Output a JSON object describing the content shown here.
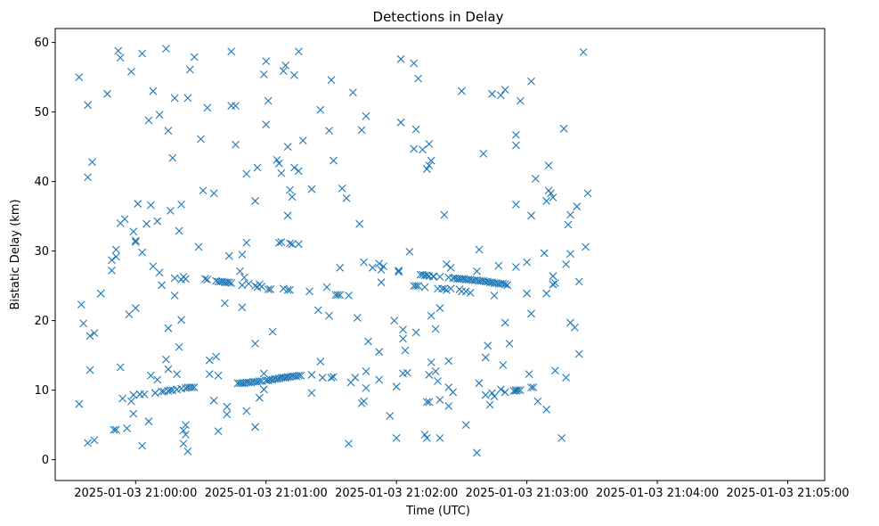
{
  "chart_data": {
    "type": "scatter",
    "title": "Detections in Delay",
    "xlabel": "Time (UTC)",
    "ylabel": "Bistatic Delay (km)",
    "x_unit": "seconds after 2025-01-03 21:00:00",
    "xlim": [
      -37,
      317
    ],
    "ylim": [
      -3,
      62
    ],
    "grid": false,
    "marker": "x",
    "color": "#1f77b4",
    "xticks": [
      {
        "value": 0,
        "label": "2025-01-03 21:00:00"
      },
      {
        "value": 60,
        "label": "2025-01-03 21:01:00"
      },
      {
        "value": 120,
        "label": "2025-01-03 21:02:00"
      },
      {
        "value": 180,
        "label": "2025-01-03 21:03:00"
      },
      {
        "value": 240,
        "label": "2025-01-03 21:04:00"
      },
      {
        "value": 300,
        "label": "2025-01-03 21:05:00"
      }
    ],
    "yticks": [
      {
        "value": 0,
        "label": "0"
      },
      {
        "value": 10,
        "label": "10"
      },
      {
        "value": 20,
        "label": "20"
      },
      {
        "value": 30,
        "label": "30"
      },
      {
        "value": 40,
        "label": "40"
      },
      {
        "value": 50,
        "label": "50"
      },
      {
        "value": 60,
        "label": "60"
      }
    ],
    "points": [
      [
        -26,
        55
      ],
      [
        -26,
        8
      ],
      [
        -25,
        22.3
      ],
      [
        -24,
        19.6
      ],
      [
        -22,
        51
      ],
      [
        -22,
        2.4
      ],
      [
        -22,
        40.6
      ],
      [
        -21,
        17.8
      ],
      [
        -21,
        12.9
      ],
      [
        -20,
        42.8
      ],
      [
        -19,
        2.8
      ],
      [
        -19,
        18.2
      ],
      [
        -16,
        23.9
      ],
      [
        -13,
        52.6
      ],
      [
        -11,
        27.2
      ],
      [
        -11,
        28.7
      ],
      [
        -10,
        4.3
      ],
      [
        -9,
        29.2
      ],
      [
        -9,
        4.3
      ],
      [
        -9,
        30.2
      ],
      [
        -8,
        58.8
      ],
      [
        -7,
        57.8
      ],
      [
        -7,
        34
      ],
      [
        -7,
        13.3
      ],
      [
        -6,
        8.8
      ],
      [
        -5,
        34.6
      ],
      [
        -4,
        4.5
      ],
      [
        -3,
        20.9
      ],
      [
        -2,
        55.8
      ],
      [
        -2,
        8.4
      ],
      [
        -1,
        6.6
      ],
      [
        -1,
        9.3
      ],
      [
        -1,
        32.8
      ],
      [
        0,
        31.3
      ],
      [
        0,
        31.5
      ],
      [
        0,
        21.8
      ],
      [
        1,
        36.8
      ],
      [
        2,
        9.4
      ],
      [
        2,
        9.4
      ],
      [
        3,
        29.8
      ],
      [
        3,
        58.4
      ],
      [
        3,
        2
      ],
      [
        4,
        9.4
      ],
      [
        5,
        33.9
      ],
      [
        6,
        5.5
      ],
      [
        6,
        48.8
      ],
      [
        7,
        12.1
      ],
      [
        7,
        36.6
      ],
      [
        8,
        27.8
      ],
      [
        8,
        53
      ],
      [
        9,
        9.6
      ],
      [
        9,
        9.6
      ],
      [
        10,
        11.5
      ],
      [
        10,
        34.3
      ],
      [
        11,
        26.9
      ],
      [
        11,
        49.6
      ],
      [
        12,
        9.8
      ],
      [
        12,
        25.1
      ],
      [
        13,
        9.8
      ],
      [
        14,
        59.1
      ],
      [
        14,
        14.4
      ],
      [
        15,
        47.3
      ],
      [
        15,
        18.9
      ],
      [
        15,
        13
      ],
      [
        15,
        9.9
      ],
      [
        16,
        10
      ],
      [
        16,
        35.8
      ],
      [
        17,
        43.4
      ],
      [
        17,
        10
      ],
      [
        18,
        26.1
      ],
      [
        18,
        52
      ],
      [
        18,
        23.6
      ],
      [
        19,
        12.3
      ],
      [
        19,
        10.1
      ],
      [
        20,
        32.9
      ],
      [
        20,
        16.2
      ],
      [
        21,
        36.7
      ],
      [
        21,
        25.9
      ],
      [
        21,
        10.2
      ],
      [
        21,
        20.1
      ],
      [
        22,
        26.3
      ],
      [
        22,
        2.3
      ],
      [
        22,
        4.2
      ],
      [
        23,
        10.3
      ],
      [
        23,
        26
      ],
      [
        23,
        3.6
      ],
      [
        23,
        5
      ],
      [
        24,
        52
      ],
      [
        24,
        1.2
      ],
      [
        24,
        10.4
      ],
      [
        25,
        56.1
      ],
      [
        25,
        10.4
      ],
      [
        26,
        10.4
      ],
      [
        27,
        10.4
      ],
      [
        27,
        57.9
      ],
      [
        29,
        30.6
      ],
      [
        30,
        46.1
      ],
      [
        31,
        38.7
      ],
      [
        32,
        26
      ],
      [
        33,
        25.9
      ],
      [
        33,
        50.6
      ],
      [
        34,
        14.3
      ],
      [
        34,
        12.3
      ],
      [
        36,
        8.5
      ],
      [
        36,
        38.3
      ],
      [
        37,
        25.7
      ],
      [
        37,
        14.8
      ],
      [
        38,
        25.6
      ],
      [
        38,
        4.1
      ],
      [
        38,
        12.1
      ],
      [
        39,
        25.6
      ],
      [
        40,
        25.6
      ],
      [
        41,
        25.5
      ],
      [
        41,
        22.5
      ],
      [
        42,
        7.6
      ],
      [
        42,
        25.5
      ],
      [
        42,
        6.5
      ],
      [
        43,
        25.5
      ],
      [
        43,
        29.3
      ],
      [
        44,
        58.7
      ],
      [
        44,
        25.4
      ],
      [
        44,
        50.9
      ],
      [
        46,
        50.9
      ],
      [
        46,
        45.3
      ],
      [
        47,
        11
      ],
      [
        48,
        11
      ],
      [
        48,
        27.1
      ],
      [
        49,
        11
      ],
      [
        49,
        21.9
      ],
      [
        49,
        29.5
      ],
      [
        49,
        25.1
      ],
      [
        50,
        11
      ],
      [
        50,
        26.2
      ],
      [
        51,
        11.1
      ],
      [
        51,
        31.2
      ],
      [
        51,
        7
      ],
      [
        51,
        41.1
      ],
      [
        52,
        25.3
      ],
      [
        52,
        11.1
      ],
      [
        53,
        11.1
      ],
      [
        54,
        11.2
      ],
      [
        55,
        37.2
      ],
      [
        55,
        16.7
      ],
      [
        55,
        11.2
      ],
      [
        55,
        4.7
      ],
      [
        55,
        25
      ],
      [
        56,
        11.2
      ],
      [
        56,
        24.8
      ],
      [
        56,
        42
      ],
      [
        57,
        11.3
      ],
      [
        57,
        25.2
      ],
      [
        57,
        8.9
      ],
      [
        58,
        24.9
      ],
      [
        58,
        11.3
      ],
      [
        59,
        55.4
      ],
      [
        59,
        10.1
      ],
      [
        59,
        12.4
      ],
      [
        60,
        57.3
      ],
      [
        60,
        11.4
      ],
      [
        60,
        48.2
      ],
      [
        61,
        24.5
      ],
      [
        61,
        11.4
      ],
      [
        61,
        51.6
      ],
      [
        62,
        24.5
      ],
      [
        62,
        11.5
      ],
      [
        62,
        24.5
      ],
      [
        63,
        18.4
      ],
      [
        63,
        11.5
      ],
      [
        64,
        11.6
      ],
      [
        65,
        11.6
      ],
      [
        65,
        43.1
      ],
      [
        66,
        11.7
      ],
      [
        66,
        31.2
      ],
      [
        66,
        42.6
      ],
      [
        66,
        11.7
      ],
      [
        67,
        31.3
      ],
      [
        67,
        41.2
      ],
      [
        67,
        11.8
      ],
      [
        68,
        24.6
      ],
      [
        68,
        55.9
      ],
      [
        68,
        11.8
      ],
      [
        69,
        11.8
      ],
      [
        69,
        56.7
      ],
      [
        69,
        11.8
      ],
      [
        70,
        45
      ],
      [
        70,
        11.9
      ],
      [
        70,
        24.4
      ],
      [
        70,
        35.1
      ],
      [
        71,
        38.8
      ],
      [
        71,
        11.9
      ],
      [
        71,
        24.4
      ],
      [
        71,
        31.1
      ],
      [
        72,
        37.8
      ],
      [
        72,
        31
      ],
      [
        72,
        12
      ],
      [
        73,
        12
      ],
      [
        73,
        55.3
      ],
      [
        73,
        42
      ],
      [
        74,
        12
      ],
      [
        75,
        58.7
      ],
      [
        75,
        31
      ],
      [
        75,
        41.5
      ],
      [
        75,
        12.1
      ],
      [
        76,
        12.1
      ],
      [
        77,
        45.9
      ],
      [
        80,
        24.2
      ],
      [
        81,
        38.9
      ],
      [
        81,
        12.2
      ],
      [
        81,
        9.6
      ],
      [
        84,
        21.5
      ],
      [
        85,
        50.3
      ],
      [
        85,
        14.1
      ],
      [
        86,
        11.8
      ],
      [
        88,
        24.8
      ],
      [
        89,
        47.3
      ],
      [
        89,
        20.7
      ],
      [
        90,
        54.6
      ],
      [
        90,
        11.8
      ],
      [
        91,
        11.9
      ],
      [
        91,
        43
      ],
      [
        92,
        23.7
      ],
      [
        93,
        23.7
      ],
      [
        94,
        27.6
      ],
      [
        94,
        23.7
      ],
      [
        95,
        39
      ],
      [
        97,
        37.6
      ],
      [
        98,
        23.6
      ],
      [
        98,
        2.3
      ],
      [
        99,
        11.1
      ],
      [
        100,
        52.8
      ],
      [
        101,
        11.8
      ],
      [
        102,
        20.4
      ],
      [
        103,
        33.9
      ],
      [
        104,
        8.1
      ],
      [
        104,
        47.4
      ],
      [
        105,
        8.4
      ],
      [
        105,
        28.4
      ],
      [
        106,
        49.4
      ],
      [
        106,
        10.3
      ],
      [
        106,
        12.7
      ],
      [
        107,
        17
      ],
      [
        109,
        27.6
      ],
      [
        112,
        28.2
      ],
      [
        112,
        11.5
      ],
      [
        112,
        15.5
      ],
      [
        113,
        25.5
      ],
      [
        113,
        27.3
      ],
      [
        114,
        27.8
      ],
      [
        117,
        6.3
      ],
      [
        119,
        20
      ],
      [
        120,
        3.1
      ],
      [
        120,
        10.5
      ],
      [
        121,
        27.2
      ],
      [
        121,
        27
      ],
      [
        122,
        57.6
      ],
      [
        122,
        48.5
      ],
      [
        123,
        12.4
      ],
      [
        123,
        18.7
      ],
      [
        123,
        17.4
      ],
      [
        124,
        15.7
      ],
      [
        125,
        12.5
      ],
      [
        126,
        29.9
      ],
      [
        128,
        25
      ],
      [
        128,
        57
      ],
      [
        128,
        44.7
      ],
      [
        129,
        47.5
      ],
      [
        129,
        18.3
      ],
      [
        129,
        25
      ],
      [
        130,
        54.8
      ],
      [
        130,
        25
      ],
      [
        131,
        26.6
      ],
      [
        132,
        26.6
      ],
      [
        132,
        44.6
      ],
      [
        133,
        3.6
      ],
      [
        133,
        24.8
      ],
      [
        133,
        26.5
      ],
      [
        134,
        41.8
      ],
      [
        134,
        8.3
      ],
      [
        134,
        3.1
      ],
      [
        134,
        26.5
      ],
      [
        135,
        42.3
      ],
      [
        135,
        45.4
      ],
      [
        135,
        8.3
      ],
      [
        135,
        12.2
      ],
      [
        135,
        26.4
      ],
      [
        136,
        43
      ],
      [
        136,
        20.7
      ],
      [
        136,
        14
      ],
      [
        137,
        26.4
      ],
      [
        137,
        26.3
      ],
      [
        138,
        18.8
      ],
      [
        138,
        12.7
      ],
      [
        139,
        24.6
      ],
      [
        139,
        11.3
      ],
      [
        140,
        3.1
      ],
      [
        140,
        21.8
      ],
      [
        140,
        8.6
      ],
      [
        140,
        26.3
      ],
      [
        141,
        24.6
      ],
      [
        142,
        35.2
      ],
      [
        142,
        24.6
      ],
      [
        143,
        24.4
      ],
      [
        143,
        28.1
      ],
      [
        144,
        7.7
      ],
      [
        144,
        10.4
      ],
      [
        144,
        14.2
      ],
      [
        144,
        26.2
      ],
      [
        145,
        27.6
      ],
      [
        145,
        24.6
      ],
      [
        146,
        9.7
      ],
      [
        146,
        26.1
      ],
      [
        147,
        26.1
      ],
      [
        148,
        26
      ],
      [
        149,
        24.5
      ],
      [
        149,
        26
      ],
      [
        150,
        26
      ],
      [
        150,
        53
      ],
      [
        150,
        24.2
      ],
      [
        151,
        26
      ],
      [
        152,
        24.2
      ],
      [
        152,
        5
      ],
      [
        152,
        25.9
      ],
      [
        153,
        25.9
      ],
      [
        154,
        25.9
      ],
      [
        154,
        24
      ],
      [
        155,
        25.8
      ],
      [
        156,
        25.8
      ],
      [
        157,
        25.8
      ],
      [
        157,
        1
      ],
      [
        157,
        27.1
      ],
      [
        158,
        25.7
      ],
      [
        158,
        11
      ],
      [
        158,
        30.2
      ],
      [
        159,
        25.7
      ],
      [
        160,
        25.7
      ],
      [
        160,
        44
      ],
      [
        161,
        25.6
      ],
      [
        161,
        9.3
      ],
      [
        161,
        14.7
      ],
      [
        162,
        25.6
      ],
      [
        162,
        16.4
      ],
      [
        163,
        25.5
      ],
      [
        163,
        7.9
      ],
      [
        164,
        25.5
      ],
      [
        164,
        9.6
      ],
      [
        164,
        52.6
      ],
      [
        165,
        25.4
      ],
      [
        165,
        23.6
      ],
      [
        165,
        9.1
      ],
      [
        166,
        25.4
      ],
      [
        167,
        27.9
      ],
      [
        167,
        25.3
      ],
      [
        168,
        25.3
      ],
      [
        168,
        10.1
      ],
      [
        168,
        52.4
      ],
      [
        169,
        25.3
      ],
      [
        169,
        13.6
      ],
      [
        170,
        25.2
      ],
      [
        170,
        53.2
      ],
      [
        170,
        9.7
      ],
      [
        170,
        19.7
      ],
      [
        171,
        25.1
      ],
      [
        172,
        16.7
      ],
      [
        174,
        9.9
      ],
      [
        174,
        9.9
      ],
      [
        175,
        9.9
      ],
      [
        175,
        10
      ],
      [
        175,
        27.7
      ],
      [
        175,
        36.7
      ],
      [
        175,
        46.7
      ],
      [
        175,
        45.2
      ],
      [
        176,
        10
      ],
      [
        177,
        10
      ],
      [
        177,
        51.6
      ],
      [
        180,
        28.4
      ],
      [
        180,
        23.9
      ],
      [
        181,
        12.3
      ],
      [
        182,
        54.4
      ],
      [
        182,
        35.1
      ],
      [
        182,
        21
      ],
      [
        182,
        10.4
      ],
      [
        183,
        10.4
      ],
      [
        184,
        40.4
      ],
      [
        185,
        8.4
      ],
      [
        188,
        29.7
      ],
      [
        189,
        23.9
      ],
      [
        189,
        7.2
      ],
      [
        189,
        37.2
      ],
      [
        190,
        38.7
      ],
      [
        190,
        42.3
      ],
      [
        191,
        38.3
      ],
      [
        192,
        25.2
      ],
      [
        192,
        26.4
      ],
      [
        192,
        37.7
      ],
      [
        192,
        25.2
      ],
      [
        193,
        25.4
      ],
      [
        193,
        12.8
      ],
      [
        196,
        3.1
      ],
      [
        197,
        47.6
      ],
      [
        198,
        28.1
      ],
      [
        198,
        11.8
      ],
      [
        199,
        33.8
      ],
      [
        200,
        19.7
      ],
      [
        200,
        35.2
      ],
      [
        200,
        29.6
      ],
      [
        202,
        19
      ],
      [
        203,
        36.4
      ],
      [
        204,
        25.6
      ],
      [
        204,
        15.2
      ],
      [
        206,
        58.6
      ],
      [
        207,
        30.6
      ],
      [
        208,
        38.3
      ]
    ]
  }
}
